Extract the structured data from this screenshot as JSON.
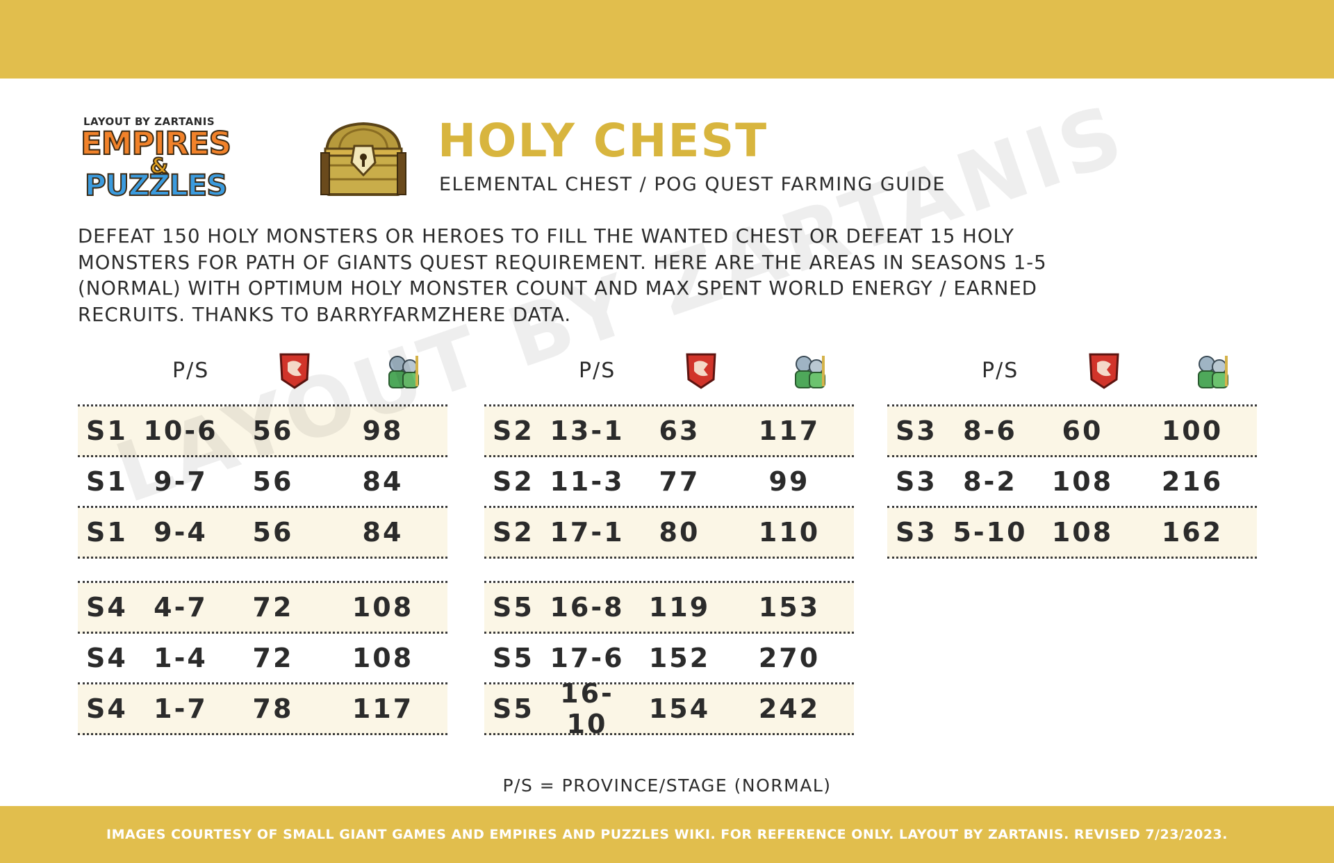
{
  "logo": {
    "credit": "LAYOUT BY ZARTANIS",
    "word_top": "EMPIRES",
    "word_amp": "&",
    "word_bottom": "PUZZLES"
  },
  "header": {
    "title": "HOLY CHEST",
    "subtitle": "ELEMENTAL CHEST / POG QUEST FARMING GUIDE"
  },
  "description": {
    "lines": [
      "DEFEAT 150 HOLY MONSTERS OR HEROES TO FILL THE WANTED CHEST OR DEFEAT 15 HOLY",
      "MONSTERS FOR PATH OF GIANTS QUEST REQUIREMENT. HERE ARE THE AREAS IN SEASONS 1-5",
      "(NORMAL) WITH OPTIMUM HOLY MONSTER COUNT AND MAX SPENT WORLD ENERGY / EARNED",
      "RECRUITS. THANKS TO BARRYFARMZHERE DATA."
    ]
  },
  "watermark": "LAYOUT BY ZARTANIS",
  "table_header": {
    "ps_label": "P/S",
    "monster_icon": "monster-banner-icon",
    "recruit_icon": "recruit-knight-icon"
  },
  "tables": [
    {
      "rows": [
        {
          "season": "S1",
          "stage": "10-6",
          "monsters": "56",
          "recruits": "98"
        },
        {
          "season": "S1",
          "stage": "9-7",
          "monsters": "56",
          "recruits": "84"
        },
        {
          "season": "S1",
          "stage": "9-4",
          "monsters": "56",
          "recruits": "84"
        }
      ]
    },
    {
      "rows": [
        {
          "season": "S2",
          "stage": "13-1",
          "monsters": "63",
          "recruits": "117"
        },
        {
          "season": "S2",
          "stage": "11-3",
          "monsters": "77",
          "recruits": "99"
        },
        {
          "season": "S2",
          "stage": "17-1",
          "monsters": "80",
          "recruits": "110"
        }
      ]
    },
    {
      "rows": [
        {
          "season": "S3",
          "stage": "8-6",
          "monsters": "60",
          "recruits": "100"
        },
        {
          "season": "S3",
          "stage": "8-2",
          "monsters": "108",
          "recruits": "216"
        },
        {
          "season": "S3",
          "stage": "5-10",
          "monsters": "108",
          "recruits": "162"
        }
      ]
    },
    {
      "rows": [
        {
          "season": "S4",
          "stage": "4-7",
          "monsters": "72",
          "recruits": "108"
        },
        {
          "season": "S4",
          "stage": "1-4",
          "monsters": "72",
          "recruits": "108"
        },
        {
          "season": "S4",
          "stage": "1-7",
          "monsters": "78",
          "recruits": "117"
        }
      ]
    },
    {
      "rows": [
        {
          "season": "S5",
          "stage": "16-8",
          "monsters": "119",
          "recruits": "153"
        },
        {
          "season": "S5",
          "stage": "17-6",
          "monsters": "152",
          "recruits": "270"
        },
        {
          "season": "S5",
          "stage": "16-10",
          "monsters": "154",
          "recruits": "242"
        }
      ]
    }
  ],
  "legend": "P/S = PROVINCE/STAGE (NORMAL)",
  "footer": "IMAGES COURTESY OF SMALL GIANT GAMES AND EMPIRES AND PUZZLES WIKI.  FOR REFERENCE ONLY. LAYOUT BY ZARTANIS. REVISED 7/23/2023.",
  "colors": {
    "gold_bar": "#e1be4d",
    "title_gold": "#d8b53e",
    "row_shade": "#fbf6e6",
    "text": "#2b2b2b"
  }
}
